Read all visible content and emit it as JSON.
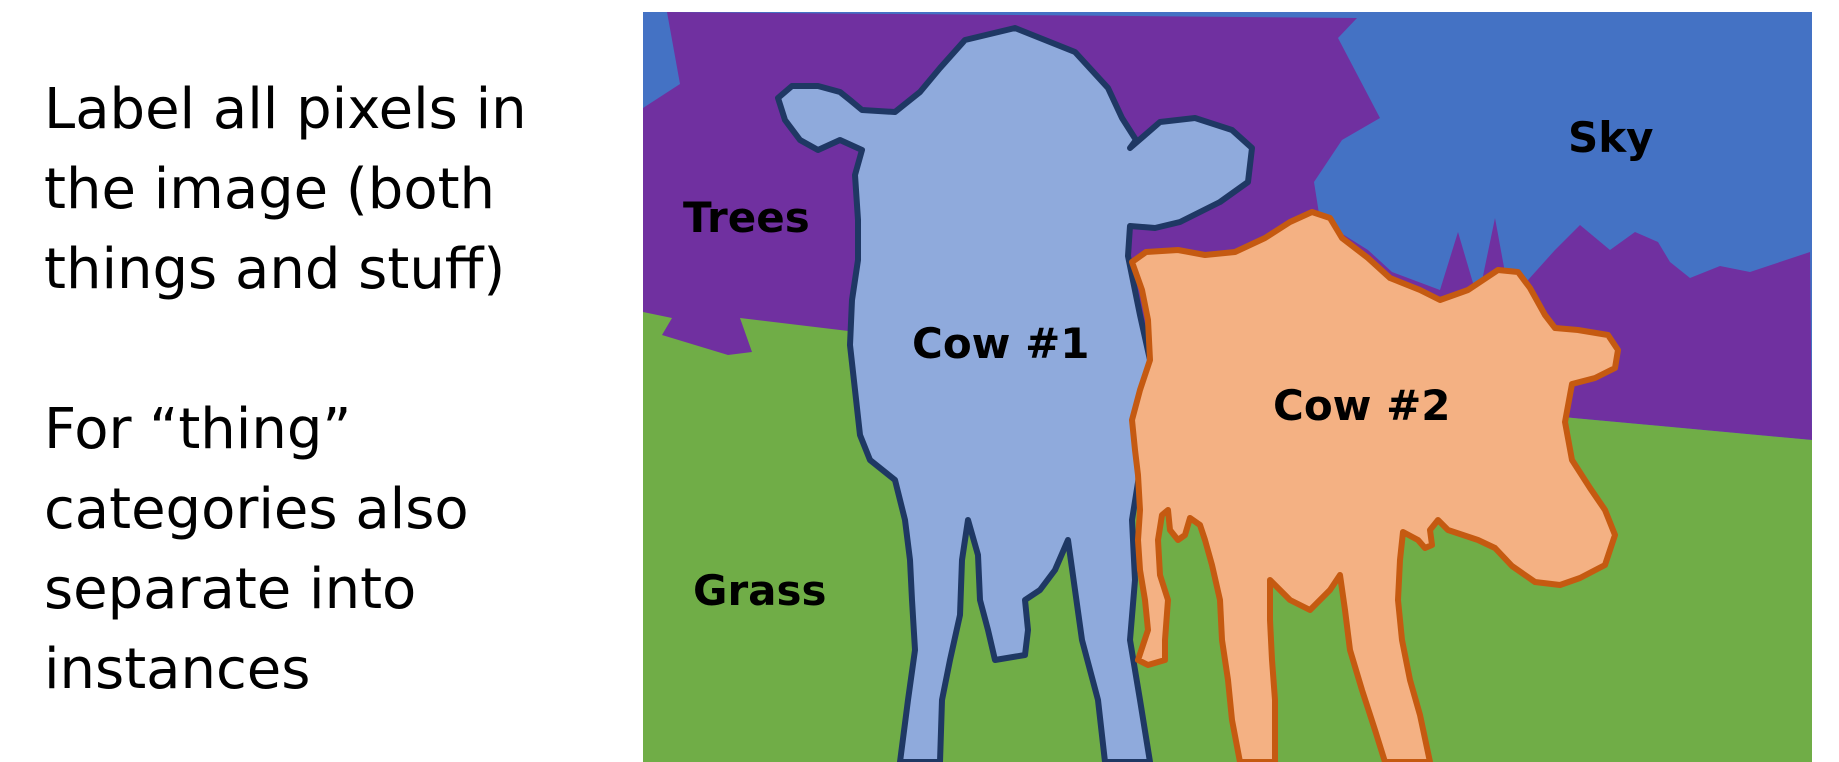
{
  "text": {
    "paragraph1": [
      "Label all pixels in",
      "the image (both",
      "things and stuff)"
    ],
    "paragraph2": [
      "For “thing”",
      "categories also",
      "separate into",
      "instances"
    ]
  },
  "figure": {
    "labels": {
      "trees": "Trees",
      "sky": "Sky",
      "grass": "Grass",
      "cow1": "Cow #1",
      "cow2": "Cow #2"
    },
    "colors": {
      "trees": "#7030a0",
      "sky": "#4472c4",
      "grass": "#70ad47",
      "cow1_fill": "#8faadc",
      "cow1_outline": "#1f3864",
      "cow2_fill": "#f4b183",
      "cow2_outline": "#c55a11"
    }
  }
}
